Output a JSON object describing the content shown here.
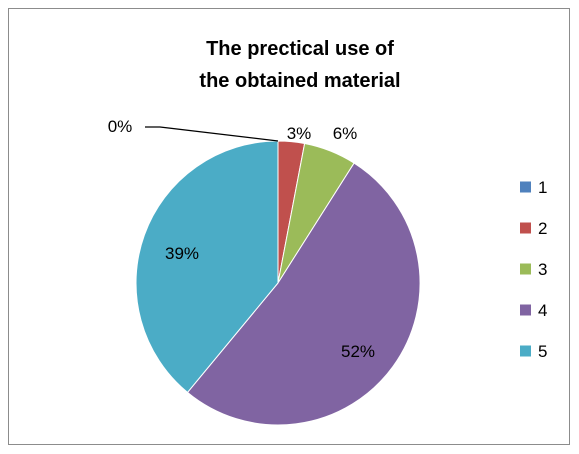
{
  "chart_data": {
    "type": "pie",
    "title_lines": [
      "The prectical use of",
      "the obtained material"
    ],
    "categories": [
      "1",
      "2",
      "3",
      "4",
      "5"
    ],
    "values": [
      0,
      3,
      6,
      52,
      39
    ],
    "data_labels": [
      "0%",
      "3%",
      "6%",
      "52%",
      "39%"
    ],
    "colors": [
      "#4f81bd",
      "#c0504d",
      "#9bbb59",
      "#8064a2",
      "#4bacc6"
    ],
    "start_angle": "12 o'clock",
    "direction": "clockwise",
    "legend_position": "right"
  }
}
